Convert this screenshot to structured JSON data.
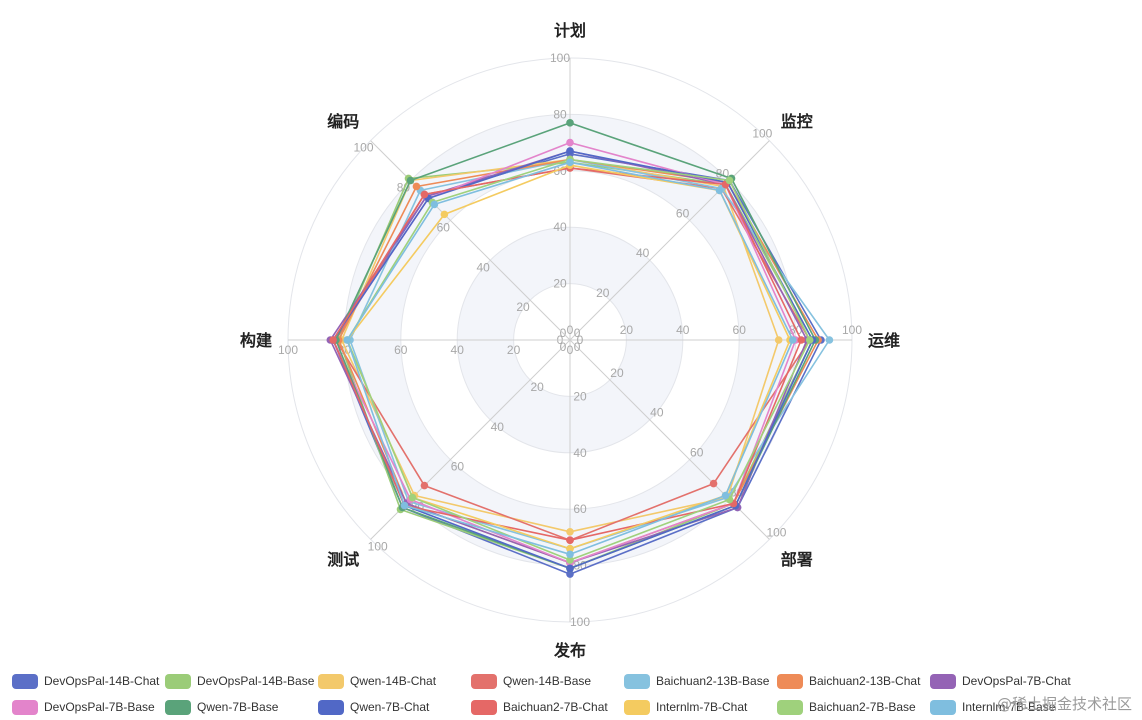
{
  "chart_data": {
    "type": "radar",
    "indicators": [
      "计划",
      "监控",
      "运维",
      "部署",
      "发布",
      "测试",
      "构建",
      "编码"
    ],
    "max": 100,
    "ticks": [
      0,
      20,
      40,
      60,
      80,
      100
    ],
    "legend_position": "bottom",
    "series": [
      {
        "name": "DevOpsPal-14B-Chat",
        "color": "#5b6fc7",
        "values": [
          66,
          80,
          89,
          84,
          83,
          84,
          84,
          72
        ]
      },
      {
        "name": "DevOpsPal-14B-Base",
        "color": "#9bcc78",
        "values": [
          63,
          78,
          86,
          82,
          81,
          85,
          82,
          81
        ]
      },
      {
        "name": "Qwen-14B-Chat",
        "color": "#f3c96b",
        "values": [
          64,
          77,
          74,
          79,
          68,
          78,
          81,
          80
        ]
      },
      {
        "name": "Qwen-14B-Base",
        "color": "#e3716c",
        "values": [
          61,
          76,
          85,
          72,
          71,
          73,
          83,
          73
        ]
      },
      {
        "name": "Baichuan2-13B-Base",
        "color": "#86c2df",
        "values": [
          64,
          76,
          92,
          79,
          74,
          81,
          78,
          75
        ]
      },
      {
        "name": "Baichuan2-13B-Chat",
        "color": "#ee8b57",
        "values": [
          64,
          79,
          88,
          82,
          79,
          82,
          82,
          77
        ]
      },
      {
        "name": "DevOpsPal-7B-Chat",
        "color": "#9463b5",
        "values": [
          67,
          78,
          84,
          84,
          79,
          82,
          85,
          72
        ]
      },
      {
        "name": "DevOpsPal-7B-Base",
        "color": "#e384cb",
        "values": [
          70,
          78,
          80,
          82,
          79,
          80,
          84,
          71
        ]
      },
      {
        "name": "Qwen-7B-Base",
        "color": "#5aa37a",
        "values": [
          77,
          81,
          87,
          83,
          81,
          84,
          83,
          80
        ]
      },
      {
        "name": "Qwen-7B-Chat",
        "color": "#5168c6",
        "values": [
          67,
          79,
          86,
          83,
          81,
          83,
          84,
          71
        ]
      },
      {
        "name": "Baichuan2-7B-Chat",
        "color": "#e56866",
        "values": [
          61,
          78,
          82,
          82,
          71,
          83,
          84,
          73
        ]
      },
      {
        "name": "Internlm-7B-Chat",
        "color": "#f4cb60",
        "values": [
          62,
          75,
          78,
          78,
          74,
          79,
          79,
          63
        ]
      },
      {
        "name": "Baichuan2-7B-Base",
        "color": "#9fd17c",
        "values": [
          64,
          80,
          85,
          80,
          78,
          79,
          79,
          69
        ]
      },
      {
        "name": "Internlm-7B-Base",
        "color": "#7fbedf",
        "values": [
          63,
          75,
          79,
          78,
          76,
          83,
          79,
          68
        ]
      }
    ]
  },
  "watermark": "@稀土掘金技术社区"
}
